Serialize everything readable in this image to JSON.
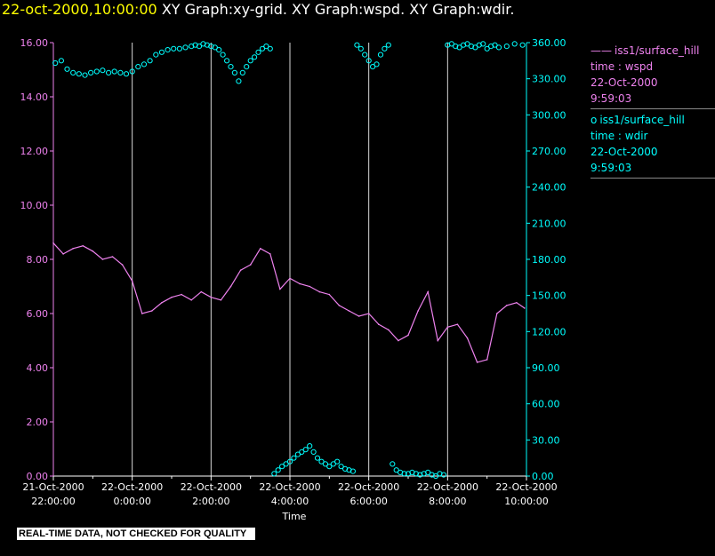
{
  "header": {
    "date_time": "22-oct-2000,10:00:00",
    "graph_titles": "XY Graph:xy-grid.  XY Graph:wspd.  XY Graph:wdir."
  },
  "footer": {
    "notice": "REAL-TIME DATA, NOT CHECKED FOR QUALITY"
  },
  "colors": {
    "wspd": "#ee82ee",
    "wdir": "#00ffff",
    "grid": "#ffffff",
    "date": "#ffff00"
  },
  "legend": [
    {
      "marker": "——",
      "source": "iss1/surface_hill",
      "var": "time : wspd",
      "date": "22-Oct-2000",
      "time": "9:59:03"
    },
    {
      "marker": "o",
      "source": "iss1/surface_hill",
      "var": "time : wdir",
      "date": "22-Oct-2000",
      "time": "9:59:03"
    }
  ],
  "chart_data": {
    "type": "line",
    "xlabel": "Time",
    "x_ticks": [
      {
        "hour": 0,
        "line1": "21-Oct-2000",
        "line2": "22:00:00"
      },
      {
        "hour": 2,
        "line1": "22-Oct-2000",
        "line2": "0:00:00"
      },
      {
        "hour": 4,
        "line1": "22-Oct-2000",
        "line2": "2:00:00"
      },
      {
        "hour": 6,
        "line1": "22-Oct-2000",
        "line2": "4:00:00"
      },
      {
        "hour": 8,
        "line1": "22-Oct-2000",
        "line2": "6:00:00"
      },
      {
        "hour": 10,
        "line1": "22-Oct-2000",
        "line2": "8:00:00"
      },
      {
        "hour": 12,
        "line1": "22-Oct-2000",
        "line2": "10:00:00"
      }
    ],
    "xlim": [
      0,
      12
    ],
    "y_left": {
      "lim": [
        0,
        16
      ],
      "ticks": [
        "0.00",
        "2.00",
        "4.00",
        "6.00",
        "8.00",
        "10.00",
        "12.00",
        "14.00",
        "16.00"
      ]
    },
    "y_right": {
      "lim": [
        0,
        360
      ],
      "ticks": [
        "0.00",
        "30.00",
        "60.00",
        "90.00",
        "120.00",
        "150.00",
        "180.00",
        "210.00",
        "240.00",
        "270.00",
        "300.00",
        "330.00",
        "360.00"
      ]
    },
    "series": [
      {
        "name": "iss1/surface_hill time : wspd",
        "axis": "left",
        "style": "line",
        "x": [
          0.0,
          0.25,
          0.5,
          0.75,
          1.0,
          1.25,
          1.5,
          1.75,
          2.0,
          2.25,
          2.5,
          2.75,
          3.0,
          3.25,
          3.5,
          3.75,
          4.0,
          4.25,
          4.5,
          4.75,
          5.0,
          5.25,
          5.5,
          5.75,
          6.0,
          6.25,
          6.5,
          6.75,
          7.0,
          7.25,
          7.5,
          7.75,
          8.0,
          8.25,
          8.5,
          8.75,
          9.0,
          9.25,
          9.5,
          9.75,
          10.0,
          10.25,
          10.5,
          10.75,
          11.0,
          11.25,
          11.5,
          11.75,
          11.95
        ],
        "values": [
          8.6,
          8.2,
          8.4,
          8.5,
          8.3,
          8.0,
          8.1,
          7.8,
          7.2,
          6.0,
          6.1,
          6.4,
          6.6,
          6.7,
          6.5,
          6.8,
          6.6,
          6.5,
          7.0,
          7.6,
          7.8,
          8.4,
          8.2,
          6.9,
          7.3,
          7.1,
          7.0,
          6.8,
          6.7,
          6.3,
          6.1,
          5.9,
          6.0,
          5.6,
          5.4,
          5.0,
          5.2,
          6.1,
          6.8,
          5.0,
          5.5,
          5.6,
          5.1,
          4.2,
          4.3,
          6.0,
          6.3,
          6.4,
          6.2
        ]
      },
      {
        "name": "iss1/surface_hill time : wdir",
        "axis": "right",
        "style": "markers",
        "x": [
          0.05,
          0.2,
          0.35,
          0.5,
          0.65,
          0.8,
          0.95,
          1.1,
          1.25,
          1.4,
          1.55,
          1.7,
          1.85,
          2.0,
          2.15,
          2.3,
          2.45,
          2.6,
          2.75,
          2.9,
          3.05,
          3.2,
          3.35,
          3.5,
          3.6,
          3.7,
          3.8,
          3.9,
          4.0,
          4.1,
          4.2,
          4.3,
          4.4,
          4.5,
          4.6,
          4.7,
          4.8,
          4.9,
          5.0,
          5.1,
          5.2,
          5.3,
          5.4,
          5.5,
          5.6,
          5.7,
          5.8,
          5.9,
          6.0,
          6.1,
          6.2,
          6.3,
          6.4,
          6.5,
          6.6,
          6.7,
          6.8,
          6.9,
          7.0,
          7.1,
          7.2,
          7.3,
          7.4,
          7.5,
          7.6,
          7.7,
          7.8,
          7.9,
          8.0,
          8.1,
          8.2,
          8.3,
          8.4,
          8.5,
          8.6,
          8.7,
          8.8,
          8.9,
          9.0,
          9.1,
          9.2,
          9.3,
          9.4,
          9.5,
          9.6,
          9.7,
          9.8,
          9.9,
          10.0,
          10.1,
          10.2,
          10.3,
          10.4,
          10.5,
          10.6,
          10.7,
          10.8,
          10.9,
          11.0,
          11.1,
          11.2,
          11.3,
          11.5,
          11.7,
          11.9
        ],
        "values": [
          343,
          345,
          338,
          335,
          334,
          333,
          335,
          336,
          337,
          335,
          336,
          335,
          334,
          336,
          340,
          342,
          345,
          350,
          352,
          354,
          355,
          355,
          356,
          357,
          358,
          357,
          359,
          358,
          357,
          356,
          354,
          350,
          345,
          340,
          335,
          328,
          335,
          340,
          345,
          348,
          352,
          355,
          357,
          355,
          2,
          5,
          8,
          10,
          12,
          15,
          18,
          20,
          22,
          25,
          20,
          15,
          12,
          10,
          8,
          10,
          12,
          8,
          6,
          5,
          4,
          358,
          355,
          350,
          345,
          340,
          342,
          350,
          355,
          358,
          10,
          5,
          3,
          2,
          2,
          3,
          2,
          1,
          2,
          3,
          1,
          0,
          2,
          1,
          358,
          359,
          357,
          356,
          358,
          359,
          357,
          356,
          358,
          359,
          355,
          357,
          358,
          356,
          357,
          359,
          358
        ]
      }
    ]
  }
}
